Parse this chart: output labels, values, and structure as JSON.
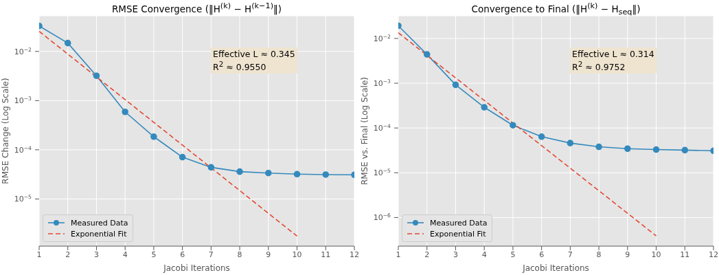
{
  "chart_data": [
    {
      "type": "line",
      "title": "RMSE Convergence (‖H$^{(k)}$ − H$^{(k−1)}$‖)",
      "xlabel": "Jacobi Iterations",
      "ylabel": "RMSE Change (Log Scale)",
      "log": "y",
      "grid": true,
      "legend": "bottom left",
      "xlim": [
        1,
        12
      ],
      "xticks": [
        1,
        2,
        3,
        4,
        5,
        6,
        7,
        8,
        9,
        10,
        11,
        12
      ],
      "ylim": [
        1.1e-06,
        0.053
      ],
      "yticks": [
        {
          "value": 0.01,
          "label": "10$^{−2}$"
        },
        {
          "value": 0.001,
          "label": "10$^{−3}$"
        },
        {
          "value": 0.0001,
          "label": "10$^{−4}$"
        },
        {
          "value": 1e-05,
          "label": "10$^{−5}$"
        }
      ],
      "annotations": [
        "Effective L ≈ 0.345\nR$^{2}$ ≈ 0.9550"
      ],
      "series": [
        {
          "name": "Measured Data",
          "type": "line",
          "color": "#348abd",
          "marker": "circle",
          "line_style": "solid",
          "x": [
            1,
            2,
            3,
            4,
            5,
            6,
            7,
            8,
            9,
            10,
            11,
            12
          ],
          "values": [
            0.033,
            0.0148,
            0.0032,
            0.00059,
            0.000185,
            7.1e-05,
            4.4e-05,
            3.6e-05,
            3.37e-05,
            3.2e-05,
            3.13e-05,
            3.1e-05
          ]
        },
        {
          "name": "Exponential Fit",
          "type": "line",
          "color": "#e24a33",
          "marker": "none",
          "line_style": "dashed",
          "x": [
            1,
            10
          ],
          "values": [
            0.0256,
            1.76e-06
          ]
        }
      ]
    },
    {
      "type": "line",
      "title": "Convergence to Final (‖H$^{(k)}$ − H$_{seq}$‖)",
      "xlabel": "Jacobi Iterations",
      "ylabel": "RMSE vs. Final (Log Scale)",
      "log": "y",
      "grid": true,
      "legend": "bottom left",
      "xlim": [
        1,
        12
      ],
      "xticks": [
        1,
        2,
        3,
        4,
        5,
        6,
        7,
        8,
        9,
        10,
        11,
        12
      ],
      "ylim": [
        2.3e-07,
        0.032
      ],
      "yticks": [
        {
          "value": 0.01,
          "label": "10$^{−2}$"
        },
        {
          "value": 0.001,
          "label": "10$^{−3}$"
        },
        {
          "value": 0.0001,
          "label": "10$^{−4}$"
        },
        {
          "value": 1e-05,
          "label": "10$^{−5}$"
        },
        {
          "value": 1e-06,
          "label": "10$^{−6}$"
        }
      ],
      "annotations": [
        "Effective L ≈ 0.314\nR$^{2}$ ≈ 0.9752"
      ],
      "series": [
        {
          "name": "Measured Data",
          "type": "line",
          "color": "#348abd",
          "marker": "circle",
          "line_style": "solid",
          "x": [
            1,
            2,
            3,
            4,
            5,
            6,
            7,
            8,
            9,
            10,
            11,
            12
          ],
          "values": [
            0.0192,
            0.0044,
            0.00092,
            0.00029,
            0.000115,
            6.4e-05,
            4.6e-05,
            3.8e-05,
            3.45e-05,
            3.3e-05,
            3.2e-05,
            3.1e-05
          ]
        },
        {
          "name": "Exponential Fit",
          "type": "line",
          "color": "#e24a33",
          "marker": "none",
          "line_style": "dashed",
          "x": [
            1,
            10
          ],
          "values": [
            0.0134,
            3.9e-07
          ]
        }
      ]
    }
  ]
}
